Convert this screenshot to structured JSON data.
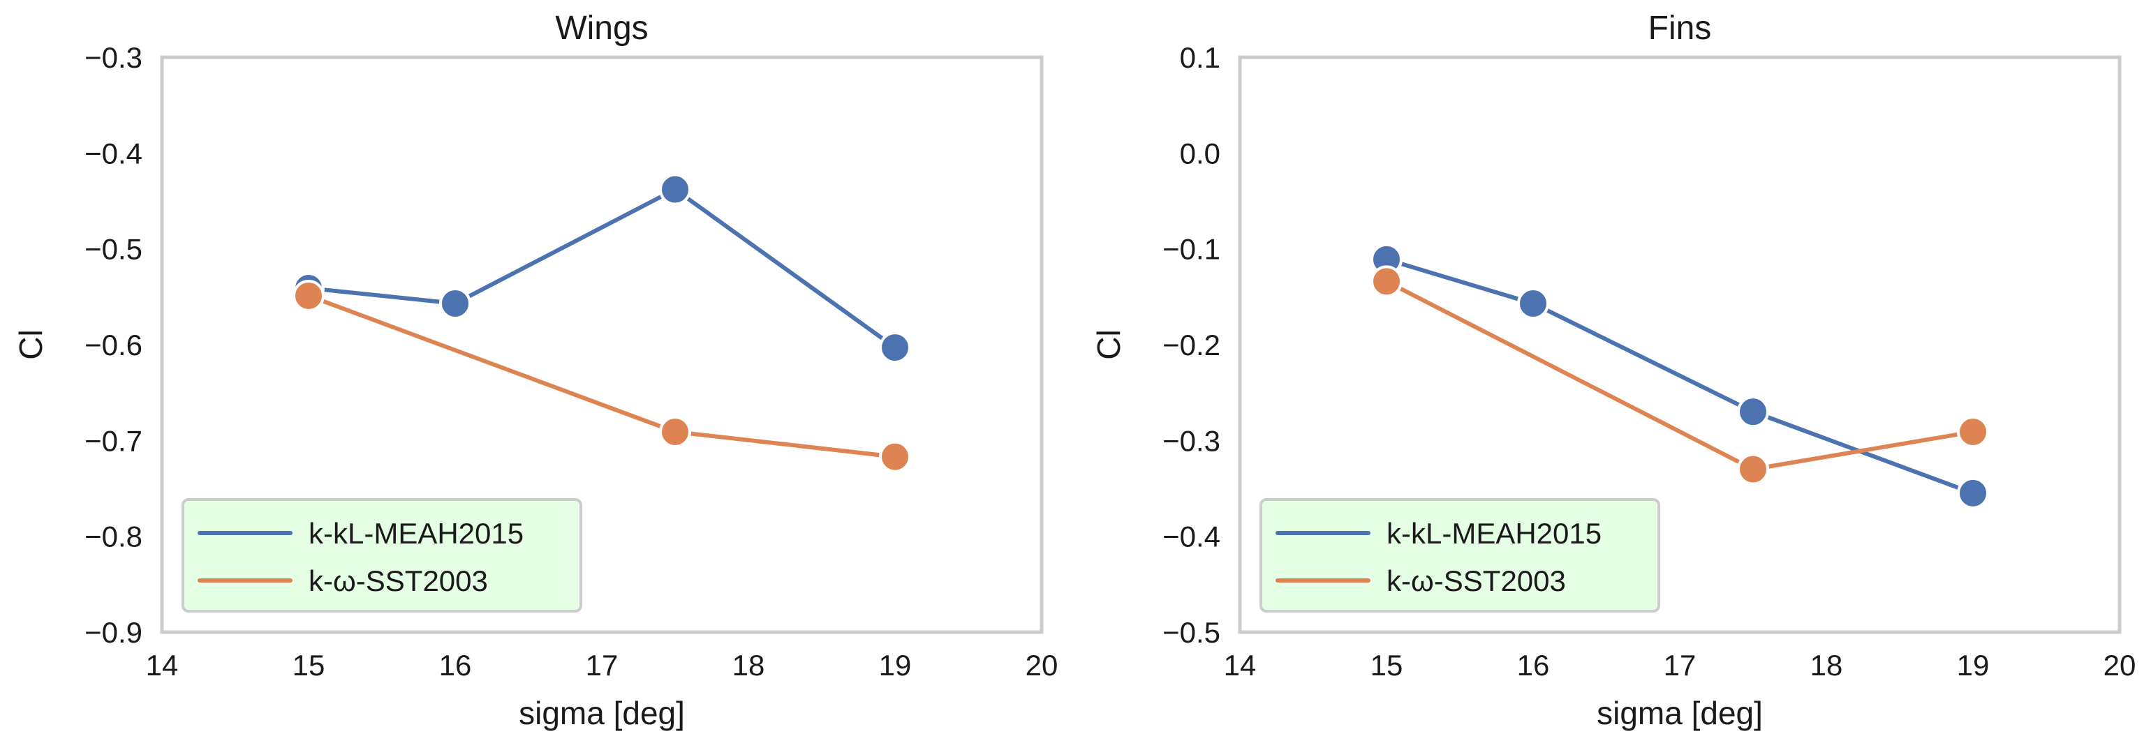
{
  "chart_data": [
    {
      "type": "line",
      "title": "Wings",
      "xlabel": "sigma [deg]",
      "ylabel": "Cl",
      "xlim": [
        14,
        20
      ],
      "ylim": [
        -0.9,
        -0.3
      ],
      "xticks": [
        14,
        15,
        16,
        17,
        18,
        19,
        20
      ],
      "yticks": [
        -0.9,
        -0.8,
        -0.7,
        -0.6,
        -0.5,
        -0.4,
        -0.3
      ],
      "xtick_labels": [
        "14",
        "15",
        "16",
        "17",
        "18",
        "19",
        "20"
      ],
      "ytick_labels": [
        "−0.9",
        "−0.8",
        "−0.7",
        "−0.6",
        "−0.5",
        "−0.4",
        "−0.3"
      ],
      "grid": false,
      "legend_position": "lower-left",
      "series": [
        {
          "name": "k-kL-MEAH2015",
          "color": "#4c72b0",
          "x": [
            15,
            16,
            17.5,
            19
          ],
          "y": [
            -0.541,
            -0.557,
            -0.438,
            -0.603
          ]
        },
        {
          "name": "k-ω-SST2003",
          "color": "#dd8452",
          "x": [
            15,
            17.5,
            19
          ],
          "y": [
            -0.549,
            -0.691,
            -0.717
          ]
        }
      ]
    },
    {
      "type": "line",
      "title": "Fins",
      "xlabel": "sigma [deg]",
      "ylabel": "Cl",
      "xlim": [
        14,
        20
      ],
      "ylim": [
        -0.5,
        0.1
      ],
      "xticks": [
        14,
        15,
        16,
        17,
        18,
        19,
        20
      ],
      "yticks": [
        -0.5,
        -0.4,
        -0.3,
        -0.2,
        -0.1,
        0.0,
        0.1
      ],
      "xtick_labels": [
        "14",
        "15",
        "16",
        "17",
        "18",
        "19",
        "20"
      ],
      "ytick_labels": [
        "−0.5",
        "−0.4",
        "−0.3",
        "−0.2",
        "−0.1",
        "0.0",
        "0.1"
      ],
      "grid": false,
      "legend_position": "lower-left",
      "series": [
        {
          "name": "k-kL-MEAH2015",
          "color": "#4c72b0",
          "x": [
            15,
            16,
            17.5,
            19
          ],
          "y": [
            -0.111,
            -0.157,
            -0.27,
            -0.355
          ]
        },
        {
          "name": "k-ω-SST2003",
          "color": "#dd8452",
          "x": [
            15,
            17.5,
            19
          ],
          "y": [
            -0.134,
            -0.33,
            -0.291
          ]
        }
      ]
    }
  ]
}
